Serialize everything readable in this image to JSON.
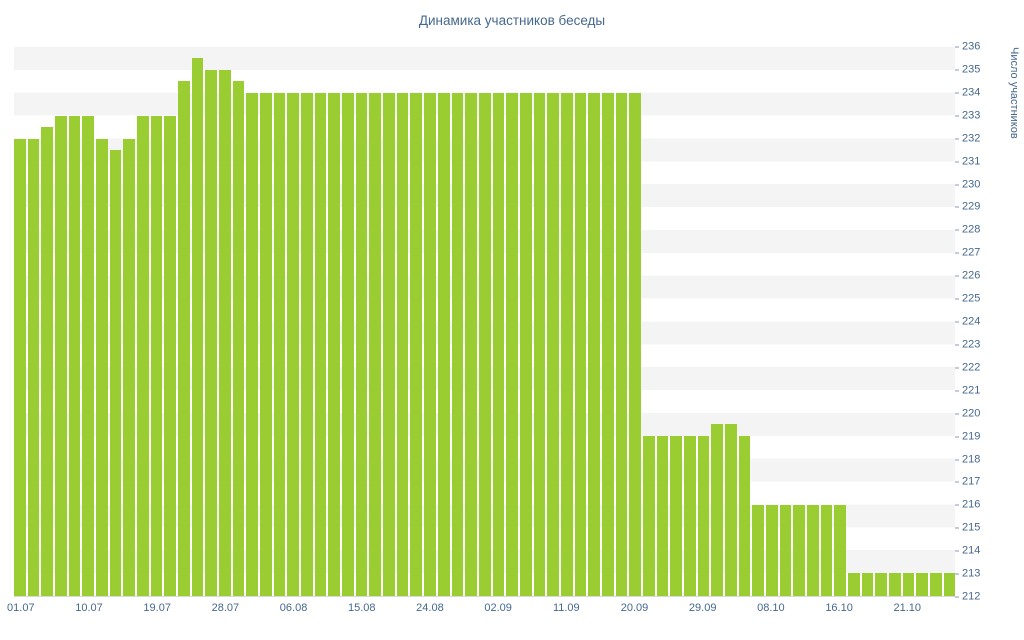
{
  "chart_data": {
    "type": "bar",
    "title": "Динамика участников беседы",
    "ylabel": "Число участников",
    "xlabel": "",
    "y_min": 212,
    "y_max": 236,
    "y_step": 1,
    "ylim": [
      212,
      236
    ],
    "grid": "horizontal-stripes",
    "legend": "none",
    "bar_color": "#9acd32",
    "title_color": "#45688e",
    "axis_text_color": "#45688e",
    "stripe_color": "#f4f4f4",
    "x_tick_labels": [
      {
        "index": 0,
        "label": "01.07"
      },
      {
        "index": 5,
        "label": "10.07"
      },
      {
        "index": 10,
        "label": "19.07"
      },
      {
        "index": 15,
        "label": "28.07"
      },
      {
        "index": 20,
        "label": "06.08"
      },
      {
        "index": 25,
        "label": "15.08"
      },
      {
        "index": 30,
        "label": "24.08"
      },
      {
        "index": 35,
        "label": "02.09"
      },
      {
        "index": 40,
        "label": "11.09"
      },
      {
        "index": 45,
        "label": "20.09"
      },
      {
        "index": 50,
        "label": "29.09"
      },
      {
        "index": 55,
        "label": "08.10"
      },
      {
        "index": 60,
        "label": "16.10"
      },
      {
        "index": 65,
        "label": "21.10"
      }
    ],
    "values": [
      232,
      232,
      232.5,
      233,
      233,
      233,
      232,
      231.5,
      232,
      233,
      233,
      233,
      234.5,
      235.5,
      235,
      235,
      234.5,
      234,
      234,
      234,
      234,
      234,
      234,
      234,
      234,
      234,
      234,
      234,
      234,
      234,
      234,
      234,
      234,
      234,
      234,
      234,
      234,
      234,
      234,
      234,
      234,
      234,
      234,
      234,
      234,
      234,
      219,
      219,
      219,
      219,
      219,
      219.5,
      219.5,
      219,
      216,
      216,
      216,
      216,
      216,
      216,
      216,
      213,
      213,
      213,
      213,
      213,
      213,
      213,
      213
    ]
  }
}
